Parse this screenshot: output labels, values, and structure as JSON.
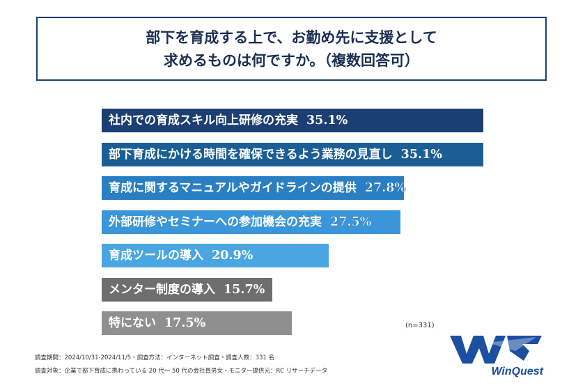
{
  "title": {
    "line1": "部下を育成する上で、お勤め先に支援として",
    "line2": "求めるものは何ですか。（複数回答可）"
  },
  "chart_data": {
    "type": "bar",
    "orientation": "horizontal",
    "title": "部下を育成する上で、お勤め先に支援として求めるものは何ですか。（複数回答可）",
    "unit": "%",
    "categories": [
      "社内での育成スキル向上研修の充実",
      "部下育成にかける時間を確保できるよう業務の見直し",
      "育成に関するマニュアルやガイドラインの提供",
      "外部研修やセミナーへの参加機会の充実",
      "育成ツールの導入",
      "メンター制度の導入",
      "特にない"
    ],
    "values": [
      35.1,
      35.1,
      27.8,
      27.5,
      20.9,
      15.7,
      17.5
    ],
    "value_labels": [
      "35.1%",
      "35.1%",
      "27.8%",
      "27.5%",
      "20.9%",
      "15.7%",
      "17.5%"
    ],
    "colors": [
      "#1b3f73",
      "#1b5e96",
      "#2a7fc2",
      "#3a96d8",
      "#4aa6e2",
      "#6e6e6e",
      "#8f8f8f"
    ],
    "xlim": [
      0,
      35.1
    ],
    "grid": false,
    "legend": "none"
  },
  "sample_note": "(n=331)",
  "footer": {
    "line1": "調査期間：2024/10/31-2024/11/5・調査方法：インターネット調査・調査人数：331 名",
    "line2": "調査対象：企業で部下育成に携わっている 20 代～ 50 代の会社員男女・モニター提供元：RC リサーチデータ"
  },
  "logo": {
    "text": "WinQuest",
    "mark": "WQ"
  }
}
